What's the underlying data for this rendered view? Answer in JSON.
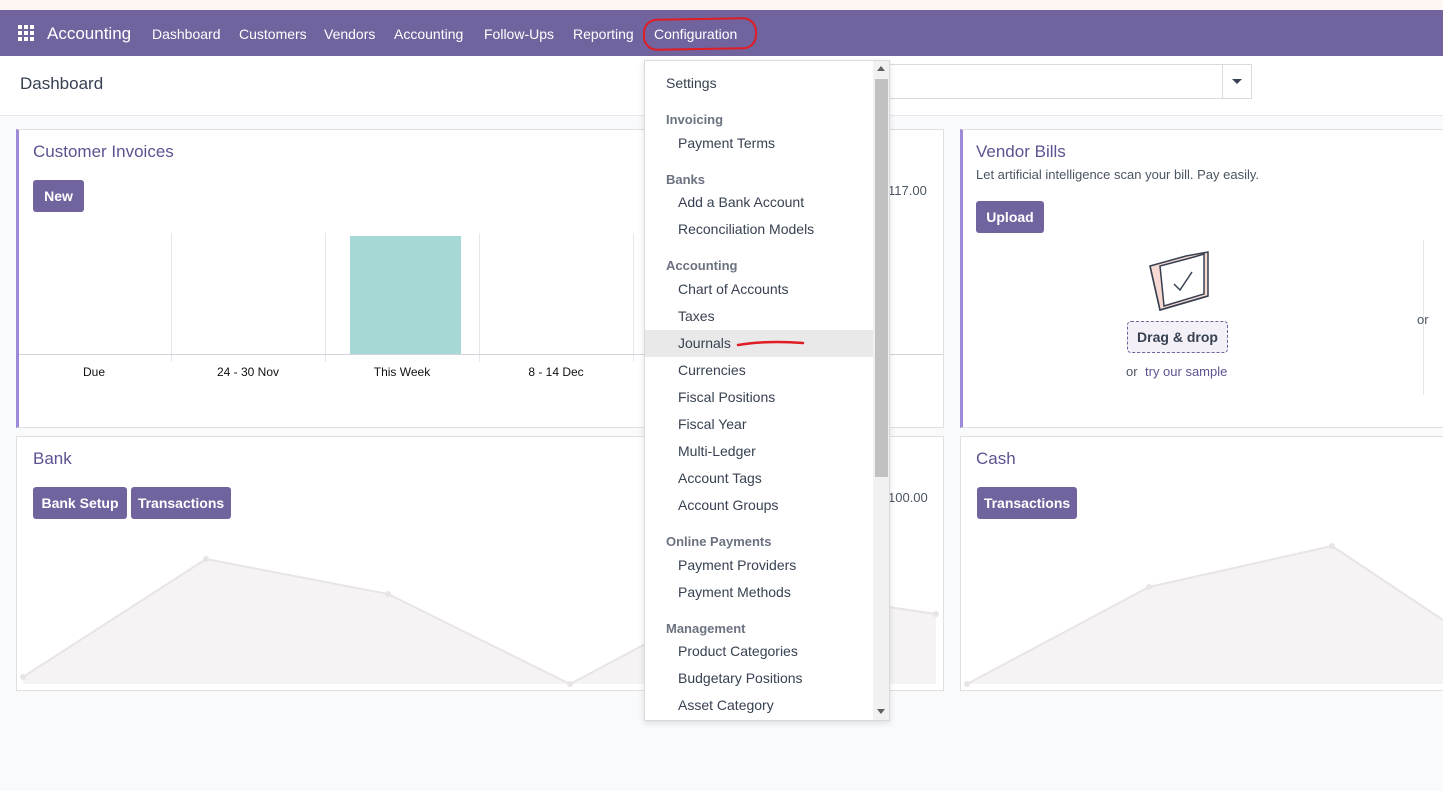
{
  "navbar": {
    "brand": "Accounting",
    "items": [
      "Dashboard",
      "Customers",
      "Vendors",
      "Accounting",
      "Follow-Ups",
      "Reporting",
      "Configuration"
    ]
  },
  "breadcrumb": "Dashboard",
  "cards": {
    "customer_invoices": {
      "title": "Customer Invoices",
      "new_button": "New",
      "amount": "117.00",
      "chart_data": {
        "type": "bar",
        "categories": [
          "Due",
          "24 - 30 Nov",
          "This Week",
          "8 - 14 Dec"
        ],
        "values": [
          0,
          0,
          1,
          0
        ]
      }
    },
    "vendor_bills": {
      "title": "Vendor Bills",
      "description": "Let artificial intelligence scan your bill. Pay easily.",
      "upload_button": "Upload",
      "drag_drop": "Drag & drop",
      "or": "or",
      "sample_link": "try our sample",
      "or_right": "or"
    },
    "bank": {
      "title": "Bank",
      "setup_button": "Bank Setup",
      "transactions_button": "Transactions",
      "amount": "100.00"
    },
    "cash": {
      "title": "Cash",
      "transactions_button": "Transactions"
    }
  },
  "dropdown": {
    "settings": "Settings",
    "sections": [
      {
        "header": "Invoicing",
        "items": [
          "Payment Terms"
        ]
      },
      {
        "header": "Banks",
        "items": [
          "Add a Bank Account",
          "Reconciliation Models"
        ]
      },
      {
        "header": "Accounting",
        "items": [
          "Chart of Accounts",
          "Taxes",
          "Journals",
          "Currencies",
          "Fiscal Positions",
          "Fiscal Year",
          "Multi-Ledger",
          "Account Tags",
          "Account Groups"
        ]
      },
      {
        "header": "Online Payments",
        "items": [
          "Payment Providers",
          "Payment Methods"
        ]
      },
      {
        "header": "Management",
        "items": [
          "Product Categories",
          "Budgetary Positions",
          "Asset Category"
        ]
      }
    ],
    "active_item": "Journals"
  },
  "colors": {
    "navbar": "#71639e",
    "accent": "#9d8ad6",
    "bar": "#a6d8d5",
    "annotation": "#e01c24"
  }
}
